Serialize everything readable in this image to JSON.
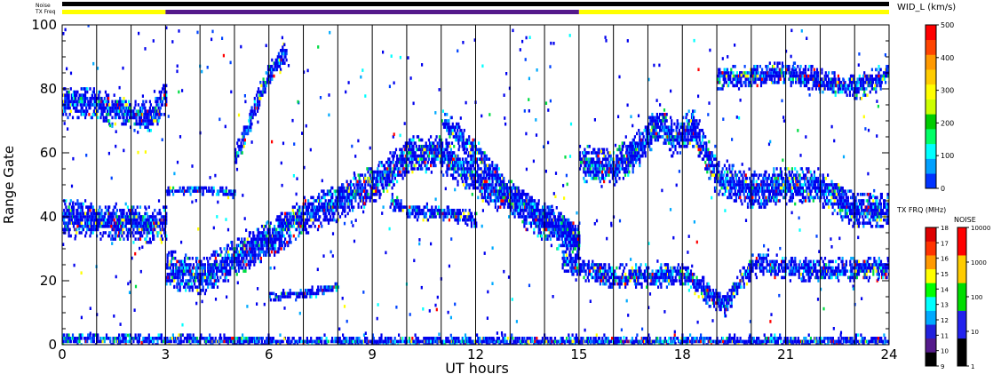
{
  "chart_data": {
    "type": "heatmap",
    "xlabel": "UT hours",
    "ylabel": "Range Gate",
    "xlim": [
      0,
      24
    ],
    "ylim": [
      0,
      100
    ],
    "x_ticks": [
      "0",
      "3",
      "6",
      "9",
      "12",
      "15",
      "18",
      "21",
      "24"
    ],
    "y_ticks": [
      "0",
      "20",
      "40",
      "60",
      "80",
      "100"
    ],
    "minor_x_step_hours": 1,
    "top_bars": {
      "noise_label": "Noise",
      "txfreq_label": "TX Freq",
      "txfreq_segments": [
        {
          "start": 0,
          "end": 3,
          "color": "#ffff00"
        },
        {
          "start": 3,
          "end": 15,
          "color": "#551a8b"
        },
        {
          "start": 15,
          "end": 24,
          "color": "#ffff00"
        }
      ]
    },
    "width_colorbar": {
      "label": "WID_L (km/s)",
      "ticks": [
        "0",
        "100",
        "200",
        "300",
        "400",
        "500"
      ],
      "range": [
        0,
        500
      ],
      "colors": [
        "#0033ff",
        "#00a0ff",
        "#00ffff",
        "#00ff66",
        "#00cc00",
        "#ccff00",
        "#ffff00",
        "#ffcc00",
        "#ff9900",
        "#ff4400",
        "#ff0000"
      ]
    },
    "freq_colorbar": {
      "label": "TX FRQ (MHz)",
      "ticks": [
        "9",
        "10",
        "11",
        "12",
        "13",
        "14",
        "15",
        "16",
        "17",
        "18"
      ],
      "colors": [
        "#000000",
        "#551a8b",
        "#2222dd",
        "#00aaff",
        "#00ffff",
        "#00ff00",
        "#ffff00",
        "#ff9900",
        "#ff3300",
        "#dd0000"
      ]
    },
    "noise_colorbar": {
      "label": "NOISE",
      "ticks": [
        "1",
        "10",
        "100",
        "1000",
        "10000"
      ],
      "colors": [
        "#000000",
        "#2222ee",
        "#00dd00",
        "#ffcc00",
        "#ff0000"
      ]
    },
    "echo_bands": [
      {
        "name": "E-region echoes",
        "points": [
          [
            0,
            2
          ],
          [
            6,
            1
          ],
          [
            12,
            1
          ],
          [
            18,
            1
          ],
          [
            24,
            1
          ]
        ],
        "halfwidth": 1.5
      },
      {
        "name": "band near gate 40",
        "points": [
          [
            0,
            40
          ],
          [
            1,
            39
          ],
          [
            2,
            38
          ],
          [
            3,
            37
          ]
        ],
        "halfwidth": 5
      },
      {
        "name": "band near gate 75",
        "points": [
          [
            0,
            76
          ],
          [
            1,
            75
          ],
          [
            2,
            72
          ],
          [
            2.6,
            71
          ],
          [
            3,
            78
          ]
        ],
        "halfwidth": 4
      },
      {
        "name": "rising main band",
        "points": [
          [
            3,
            24
          ],
          [
            4,
            21
          ],
          [
            5,
            27
          ],
          [
            6,
            33
          ],
          [
            7,
            40
          ],
          [
            8,
            45
          ],
          [
            9,
            50
          ],
          [
            10,
            59
          ],
          [
            10.8,
            60
          ],
          [
            11.3,
            57
          ],
          [
            12,
            52
          ],
          [
            13,
            45
          ],
          [
            14,
            38
          ],
          [
            15,
            32
          ]
        ],
        "halfwidth": 5
      },
      {
        "name": "band near gate 48",
        "points": [
          [
            3,
            48
          ],
          [
            4.2,
            48.5
          ],
          [
            5,
            47
          ]
        ],
        "halfwidth": 1.2
      },
      {
        "name": "band near gate 16",
        "points": [
          [
            6,
            15
          ],
          [
            7,
            16
          ],
          [
            8,
            18
          ]
        ],
        "halfwidth": 1.3
      },
      {
        "name": "upward streak",
        "points": [
          [
            5,
            58
          ],
          [
            5.6,
            75
          ],
          [
            6,
            85
          ],
          [
            6.5,
            92
          ]
        ],
        "halfwidth": 3
      },
      {
        "name": "band near gate 43",
        "points": [
          [
            9.5,
            45
          ],
          [
            10,
            42
          ],
          [
            11,
            41
          ],
          [
            12,
            39
          ]
        ],
        "halfwidth": 2
      },
      {
        "name": "descending band",
        "points": [
          [
            11,
            70
          ],
          [
            12,
            60
          ],
          [
            13,
            48
          ],
          [
            14,
            40
          ],
          [
            15,
            33
          ]
        ],
        "halfwidth": 3
      },
      {
        "name": "band near gate 57",
        "points": [
          [
            15,
            57
          ],
          [
            16,
            55
          ],
          [
            16.8,
            62
          ],
          [
            17.3,
            70
          ],
          [
            17.7,
            64
          ],
          [
            18.3,
            68
          ],
          [
            19,
            52
          ],
          [
            20,
            48
          ],
          [
            21,
            50
          ],
          [
            22,
            49
          ],
          [
            23,
            42
          ],
          [
            24,
            42
          ]
        ],
        "halfwidth": 5
      },
      {
        "name": "band near gate 24",
        "points": [
          [
            14.5,
            26
          ],
          [
            16,
            21
          ],
          [
            18,
            22
          ],
          [
            19.2,
            12
          ],
          [
            20,
            25
          ],
          [
            22,
            23
          ],
          [
            24,
            24
          ]
        ],
        "halfwidth": 3
      },
      {
        "name": "band near gate 80",
        "points": [
          [
            19,
            83
          ],
          [
            21,
            85
          ],
          [
            23,
            80
          ],
          [
            24,
            85
          ]
        ],
        "halfwidth": 3
      }
    ]
  }
}
